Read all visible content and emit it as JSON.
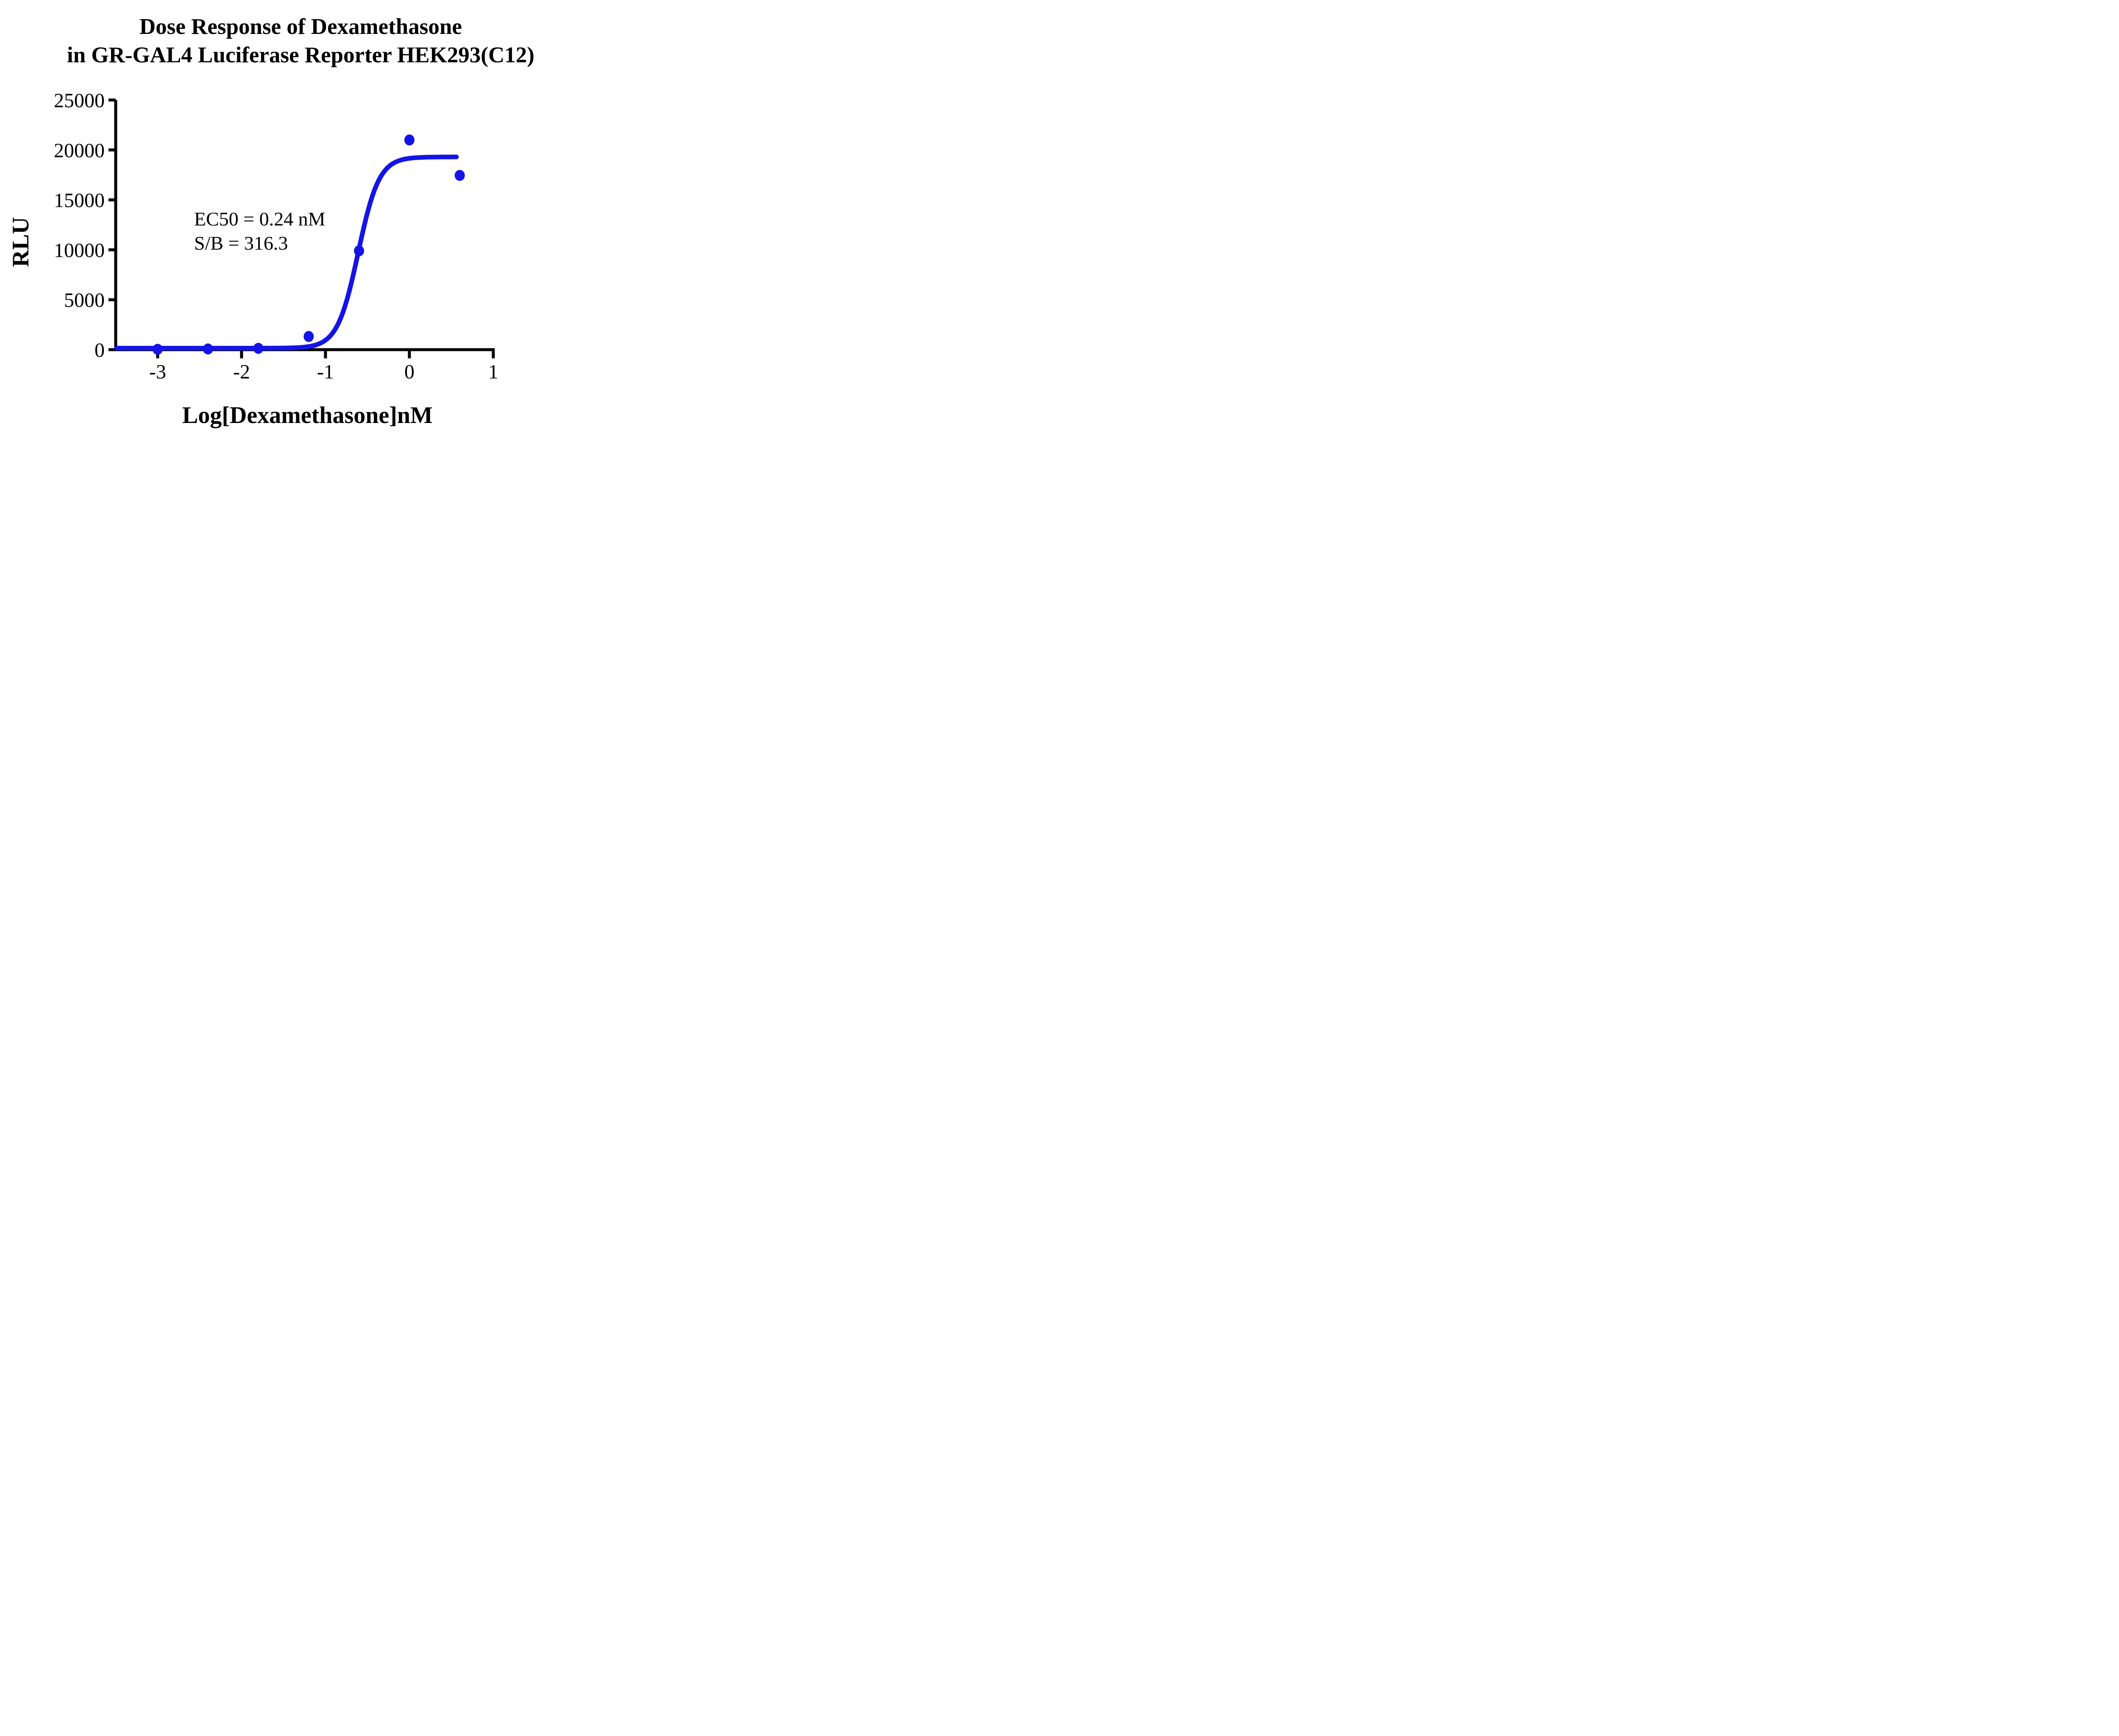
{
  "figure": {
    "background": "#ffffff",
    "text_color": "#000000"
  },
  "chart_data": {
    "type": "scatter",
    "title_line1": "Dose Response of Dexamethasone",
    "title_line2": "in GR-GAL4 Luciferase Reporter HEK293(C12)",
    "xlabel": "Log[Dexamethasone]nM",
    "ylabel": "RLU",
    "grid": false,
    "legend_position": "none",
    "xlim": [
      -3.5,
      1.0
    ],
    "ylim": [
      0,
      25000
    ],
    "x_ticks": [
      -3,
      -2,
      -1,
      0,
      1
    ],
    "x_tick_labels": [
      "-3",
      "-2",
      "-1",
      "0",
      "1"
    ],
    "y_ticks": [
      0,
      5000,
      10000,
      15000,
      20000,
      25000
    ],
    "y_tick_labels": [
      "0",
      "5000",
      "10000",
      "15000",
      "20000",
      "25000"
    ],
    "series": [
      {
        "name": "Dexamethasone",
        "marker": "circle",
        "marker_color": "#1414E8",
        "points": [
          {
            "x": -3.0,
            "y": 40
          },
          {
            "x": -2.4,
            "y": 70
          },
          {
            "x": -1.8,
            "y": 130
          },
          {
            "x": -1.2,
            "y": 1320
          },
          {
            "x": -0.6,
            "y": 9900
          },
          {
            "x": 0.0,
            "y": 21000
          },
          {
            "x": 0.6,
            "y": 17450
          }
        ]
      }
    ],
    "fit_curve": {
      "model": "4PL-logistic",
      "bottom": 150,
      "top": 19300,
      "log_ec50": -0.61,
      "hill_slope": 3.5,
      "x_start": -3.49,
      "x_end": 0.575,
      "color": "#1414E8"
    },
    "annotation_line1": "EC50 = 0.24 nM",
    "annotation_line2": "S/B = 316.3"
  }
}
